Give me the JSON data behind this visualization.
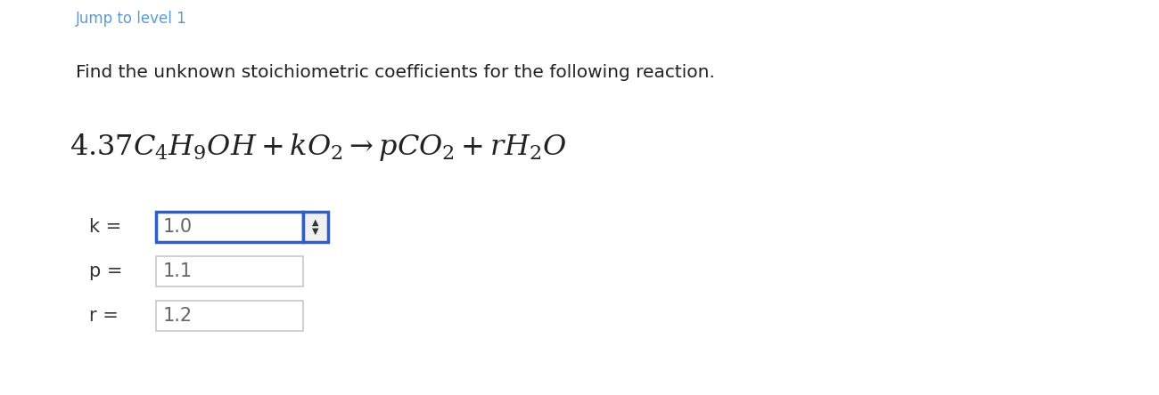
{
  "bg_color": "#ffffff",
  "jump_text": "Jump to level 1",
  "jump_color": "#5b9bd5",
  "jump_fontsize": 12,
  "instruction_text": "Find the unknown stoichiometric coefficients for the following reaction.",
  "instruction_fontsize": 14.5,
  "equation_fontsize": 23,
  "variables": [
    "k",
    "p",
    "r"
  ],
  "values": [
    "1.0",
    "1.1",
    "1.2"
  ],
  "var_fontsize": 15,
  "value_fontsize": 15,
  "active_box_color": "#2b5fcc",
  "inactive_box_color": "#c8c8c8",
  "text_color": "#222222",
  "value_color": "#666666",
  "var_label_color": "#333333"
}
